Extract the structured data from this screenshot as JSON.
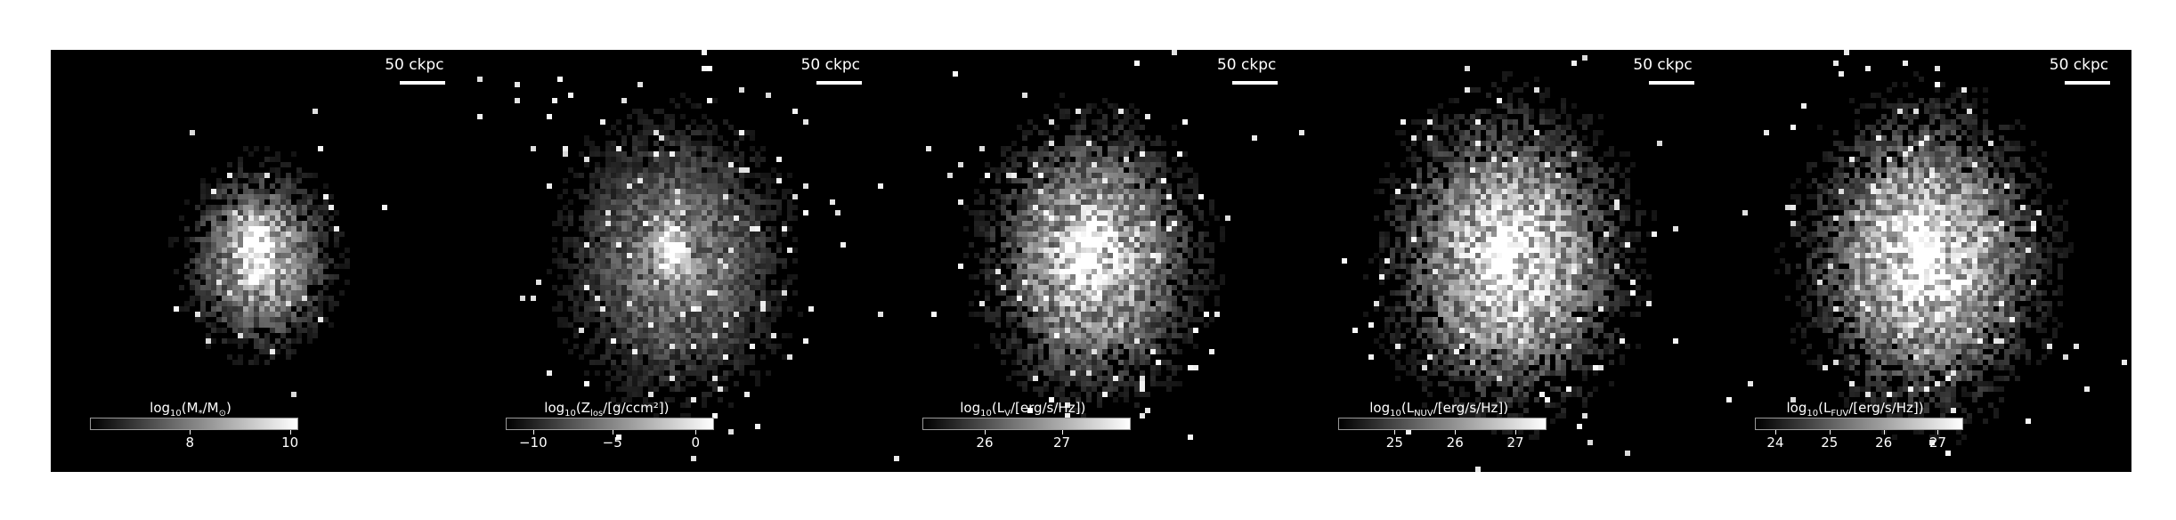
{
  "panels": [
    {
      "scalebar": "50 ckpc",
      "colorbar": {
        "prefix": "log",
        "sub": "10",
        "body": "(M",
        "body_sub": "*",
        "rest": "/M",
        "rest_sub": "⊙",
        "tail": ")"
      },
      "ticks": [
        {
          "label": "8",
          "frac": 0.48
        },
        {
          "label": "10",
          "frac": 0.96
        }
      ],
      "spread": 0.55,
      "brightness": 0.85,
      "core": 1.0,
      "bg": 0.0
    },
    {
      "scalebar": "50 ckpc",
      "colorbar": {
        "prefix": "log",
        "sub": "10",
        "body": "(Z",
        "body_sub": "los",
        "rest": "/[g/ccm²]",
        "rest_sub": "",
        "tail": ")"
      },
      "ticks": [
        {
          "label": "−10",
          "frac": 0.13
        },
        {
          "label": "−5",
          "frac": 0.51
        },
        {
          "label": "0",
          "frac": 0.91
        }
      ],
      "spread": 1.0,
      "brightness": 0.55,
      "core": 1.0,
      "bg": 0.03
    },
    {
      "scalebar": "50 ckpc",
      "colorbar": {
        "prefix": "log",
        "sub": "10",
        "body": "(L",
        "body_sub": "V",
        "rest": "/[erg/s/Hz]",
        "rest_sub": "",
        "tail": ")"
      },
      "ticks": [
        {
          "label": "26",
          "frac": 0.3
        },
        {
          "label": "27",
          "frac": 0.67
        }
      ],
      "spread": 0.9,
      "brightness": 0.9,
      "core": 1.0,
      "bg": 0.02
    },
    {
      "scalebar": "50 ckpc",
      "colorbar": {
        "prefix": "log",
        "sub": "10",
        "body": "(L",
        "body_sub": "NUV",
        "rest": "/[erg/s/Hz]",
        "rest_sub": "",
        "tail": ")"
      },
      "ticks": [
        {
          "label": "25",
          "frac": 0.27
        },
        {
          "label": "26",
          "frac": 0.56
        },
        {
          "label": "27",
          "frac": 0.85
        }
      ],
      "spread": 1.0,
      "brightness": 1.0,
      "core": 0.9,
      "bg": 0.02
    },
    {
      "scalebar": "50 ckpc",
      "colorbar": {
        "prefix": "log",
        "sub": "10",
        "body": "(L",
        "body_sub": "FUV",
        "rest": "/[erg/s/Hz]",
        "rest_sub": "",
        "tail": ")"
      },
      "ticks": [
        {
          "label": "24",
          "frac": 0.1
        },
        {
          "label": "25",
          "frac": 0.36
        },
        {
          "label": "26",
          "frac": 0.62
        },
        {
          "label": "27",
          "frac": 0.88
        }
      ],
      "spread": 1.0,
      "brightness": 1.0,
      "core": 0.9,
      "bg": 0.02
    }
  ]
}
